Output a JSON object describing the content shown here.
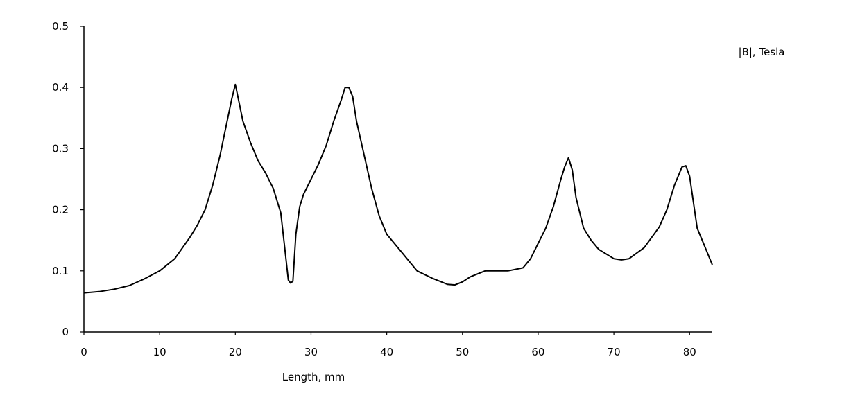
{
  "chart_data": {
    "type": "line",
    "title": "",
    "xlabel": "Length, mm",
    "ylabel": "|B|, Tesla",
    "xlim": [
      0,
      83
    ],
    "ylim": [
      0,
      0.5
    ],
    "x_ticks": [
      0,
      10,
      20,
      30,
      40,
      50,
      60,
      70,
      80
    ],
    "y_ticks": [
      0,
      0.1,
      0.2,
      0.3,
      0.4,
      0.5
    ],
    "x_tick_labels": [
      "0",
      "10",
      "20",
      "30",
      "40",
      "50",
      "60",
      "70",
      "80"
    ],
    "y_tick_labels": [
      "0",
      "0.1",
      "0.2",
      "0.3",
      "0.4",
      "0.5"
    ],
    "grid": false,
    "line_color": "#000000",
    "series": [
      {
        "x": [
          0,
          2,
          4,
          6,
          8,
          10,
          12,
          14,
          15,
          16,
          17,
          18,
          18.5,
          19,
          19.5,
          20,
          20.5,
          21,
          22,
          23,
          24,
          25,
          26,
          26.5,
          27,
          27.3,
          27.6,
          28,
          28.5,
          29,
          30,
          31,
          32,
          33,
          34,
          34.5,
          35,
          35.5,
          36,
          37,
          38,
          39,
          40,
          42,
          44,
          46,
          48,
          49,
          50,
          51,
          52,
          53,
          54,
          56,
          58,
          59,
          60,
          61,
          62,
          63,
          63.5,
          64,
          64.5,
          65,
          66,
          67,
          68,
          70,
          71,
          72,
          74,
          76,
          77,
          78,
          79,
          79.5,
          80,
          81,
          82,
          83
        ],
        "y": [
          0.064,
          0.066,
          0.07,
          0.076,
          0.087,
          0.1,
          0.12,
          0.155,
          0.175,
          0.2,
          0.24,
          0.29,
          0.32,
          0.35,
          0.38,
          0.405,
          0.375,
          0.345,
          0.31,
          0.28,
          0.26,
          0.235,
          0.195,
          0.14,
          0.085,
          0.08,
          0.083,
          0.16,
          0.205,
          0.225,
          0.25,
          0.275,
          0.305,
          0.345,
          0.38,
          0.4,
          0.4,
          0.385,
          0.345,
          0.29,
          0.235,
          0.19,
          0.16,
          0.13,
          0.1,
          0.088,
          0.078,
          0.077,
          0.082,
          0.09,
          0.095,
          0.1,
          0.1,
          0.1,
          0.105,
          0.12,
          0.145,
          0.17,
          0.205,
          0.25,
          0.27,
          0.285,
          0.265,
          0.22,
          0.17,
          0.15,
          0.135,
          0.12,
          0.118,
          0.12,
          0.138,
          0.172,
          0.2,
          0.24,
          0.27,
          0.272,
          0.255,
          0.17,
          0.14,
          0.11
        ]
      }
    ]
  }
}
